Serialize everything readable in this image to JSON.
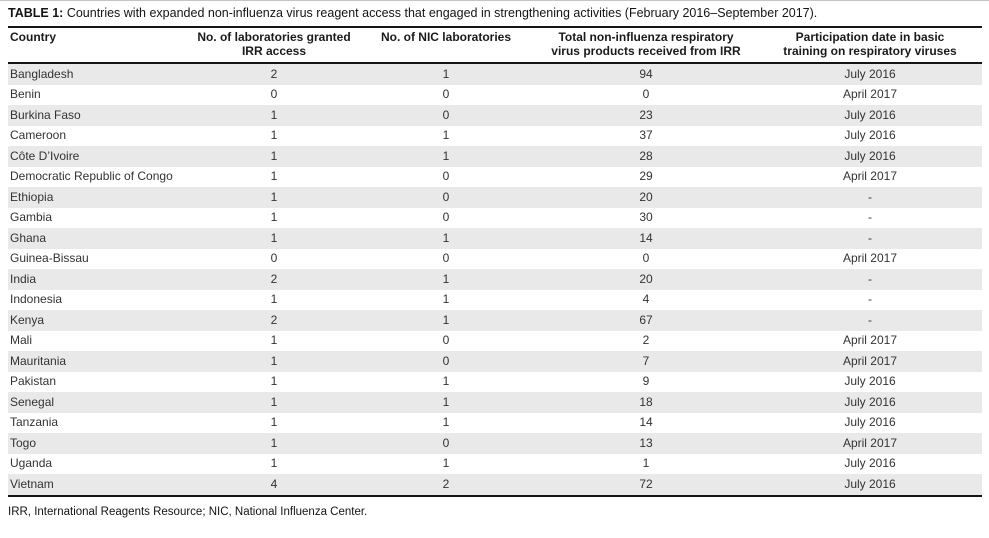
{
  "table": {
    "label": "TABLE 1:",
    "title": "Countries with expanded non-influenza virus reagent access that engaged in strengthening activities (February 2016–September 2017).",
    "columns": [
      {
        "line1": "Country",
        "line2": ""
      },
      {
        "line1": "No. of laboratories granted",
        "line2": "IRR access"
      },
      {
        "line1": "No. of NIC laboratories",
        "line2": ""
      },
      {
        "line1": "Total non-influenza respiratory",
        "line2": "virus products received from IRR"
      },
      {
        "line1": "Participation date in basic",
        "line2": "training on respiratory viruses"
      }
    ],
    "rows": [
      [
        "Bangladesh",
        "2",
        "1",
        "94",
        "July 2016"
      ],
      [
        "Benin",
        "0",
        "0",
        "0",
        "April 2017"
      ],
      [
        "Burkina Faso",
        "1",
        "0",
        "23",
        "July 2016"
      ],
      [
        "Cameroon",
        "1",
        "1",
        "37",
        "July 2016"
      ],
      [
        "Côte D’Ivoire",
        "1",
        "1",
        "28",
        "July 2016"
      ],
      [
        "Democratic Republic of Congo",
        "1",
        "0",
        "29",
        "April 2017"
      ],
      [
        "Ethiopia",
        "1",
        "0",
        "20",
        "-"
      ],
      [
        "Gambia",
        "1",
        "0",
        "30",
        "-"
      ],
      [
        "Ghana",
        "1",
        "1",
        "14",
        "-"
      ],
      [
        "Guinea-Bissau",
        "0",
        "0",
        "0",
        "April 2017"
      ],
      [
        "India",
        "2",
        "1",
        "20",
        "-"
      ],
      [
        "Indonesia",
        "1",
        "1",
        "4",
        "-"
      ],
      [
        "Kenya",
        "2",
        "1",
        "67",
        "-"
      ],
      [
        "Mali",
        "1",
        "0",
        "2",
        "April 2017"
      ],
      [
        "Mauritania",
        "1",
        "0",
        "7",
        "April 2017"
      ],
      [
        "Pakistan",
        "1",
        "1",
        "9",
        "July 2016"
      ],
      [
        "Senegal",
        "1",
        "1",
        "18",
        "July 2016"
      ],
      [
        "Tanzania",
        "1",
        "1",
        "14",
        "July 2016"
      ],
      [
        "Togo",
        "1",
        "0",
        "13",
        "April 2017"
      ],
      [
        "Uganda",
        "1",
        "1",
        "1",
        "July 2016"
      ],
      [
        "Vietnam",
        "4",
        "2",
        "72",
        "July 2016"
      ]
    ],
    "footnote": "IRR, International Reagents Resource; NIC, National Influenza Center.",
    "colors": {
      "stripe": "#e9e9e9",
      "rule": "#141414",
      "text": "#333333"
    }
  }
}
